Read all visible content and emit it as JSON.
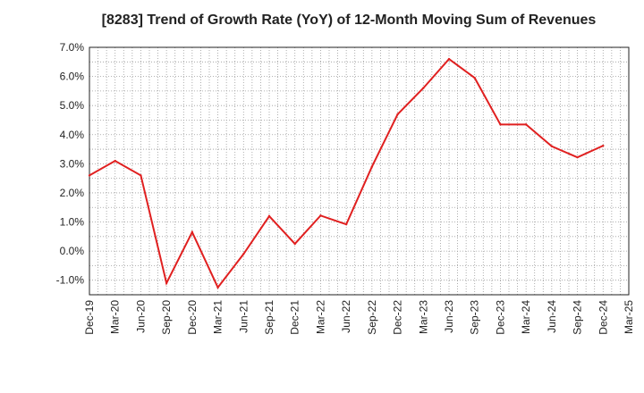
{
  "chart_data": {
    "type": "line",
    "title": "[8283]  Trend of Growth Rate (YoY) of 12-Month Moving Sum of Revenues",
    "xlabel": "",
    "ylabel": "",
    "x_tick_labels": [
      "Dec-19",
      "Mar-20",
      "Jun-20",
      "Sep-20",
      "Dec-20",
      "Mar-21",
      "Jun-21",
      "Sep-21",
      "Dec-21",
      "Mar-22",
      "Jun-22",
      "Sep-22",
      "Dec-22",
      "Mar-23",
      "Jun-23",
      "Sep-23",
      "Dec-23",
      "Mar-24",
      "Jun-24",
      "Sep-24",
      "Dec-24",
      "Mar-25"
    ],
    "y_tick_labels": [
      "7.0%",
      "6.0%",
      "5.0%",
      "4.0%",
      "3.0%",
      "2.0%",
      "1.0%",
      "0.0%",
      "-1.0%"
    ],
    "y_ticks": [
      7,
      6,
      5,
      4,
      3,
      2,
      1,
      0,
      -1
    ],
    "ylim": [
      -1.5,
      7.0
    ],
    "grid": true,
    "series": [
      {
        "color": "#e02020",
        "x": [
          "Dec-19",
          "Mar-20",
          "Jun-20",
          "Sep-20",
          "Dec-20",
          "Mar-21",
          "Jun-21",
          "Sep-21",
          "Dec-21",
          "Mar-22",
          "Jun-22",
          "Sep-22",
          "Dec-22",
          "Mar-23",
          "Jun-23",
          "Sep-23",
          "Dec-23",
          "Mar-24",
          "Jun-24",
          "Sep-24",
          "Dec-24"
        ],
        "values": [
          2.6,
          3.1,
          2.6,
          -1.1,
          0.65,
          -1.25,
          -0.1,
          1.2,
          0.25,
          1.22,
          0.92,
          2.9,
          4.7,
          5.6,
          6.6,
          5.95,
          4.35,
          4.35,
          3.6,
          3.22,
          3.62
        ]
      }
    ]
  }
}
